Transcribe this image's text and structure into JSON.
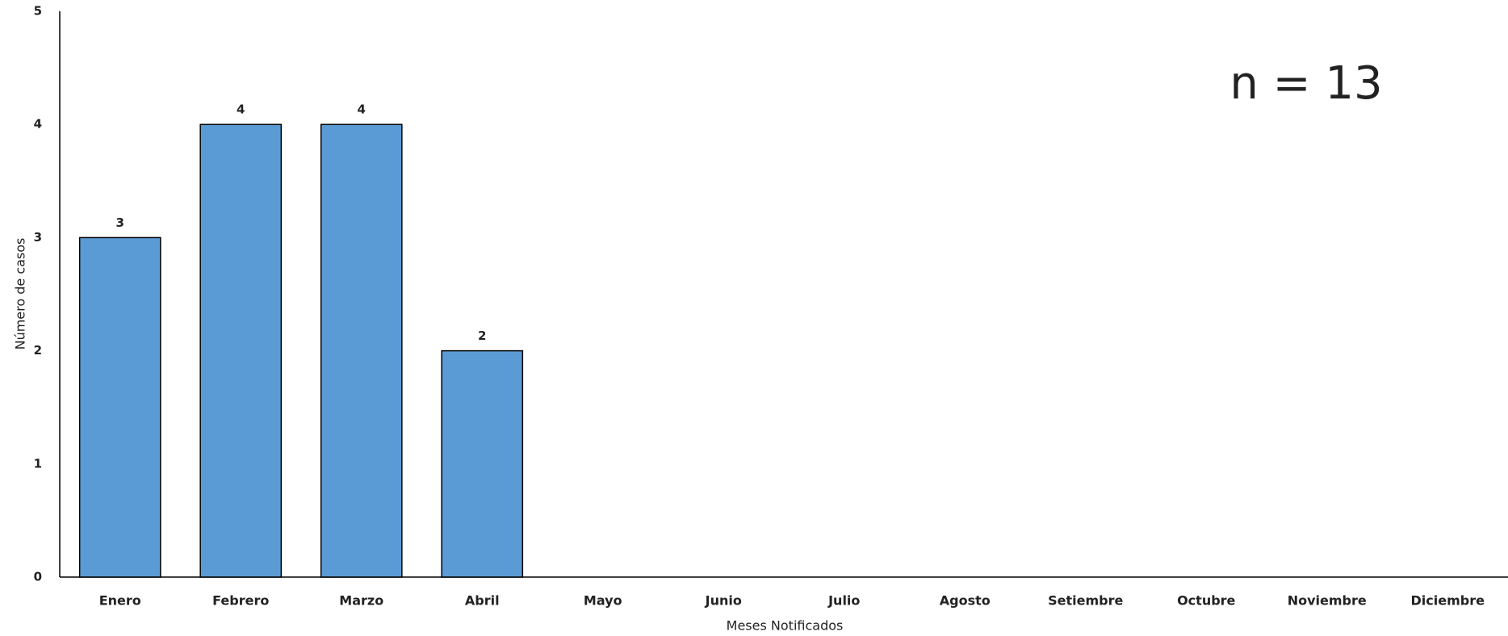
{
  "chart_data": {
    "type": "bar",
    "categories": [
      "Enero",
      "Febrero",
      "Marzo",
      "Abril",
      "Mayo",
      "Junio",
      "Julio",
      "Agosto",
      "Setiembre",
      "Octubre",
      "Noviembre",
      "Diciembre"
    ],
    "values": [
      3,
      4,
      4,
      2,
      null,
      null,
      null,
      null,
      null,
      null,
      null,
      null
    ],
    "color": "#5b9bd5",
    "ylim": [
      0,
      5
    ],
    "yticks": [
      0,
      1,
      2,
      3,
      4,
      5
    ],
    "grid": false,
    "y_label": "Número de casos",
    "x_label": "Meses Notificados",
    "annotation": "n = 13"
  }
}
